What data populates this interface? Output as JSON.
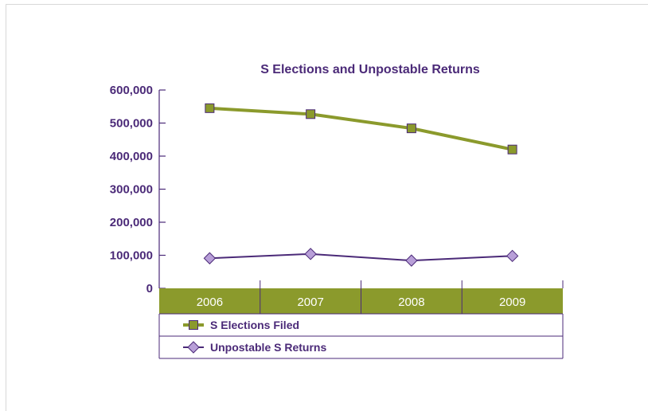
{
  "chart_data": {
    "type": "line",
    "title": "S Elections and Unpostable Returns",
    "categories": [
      "2006",
      "2007",
      "2008",
      "2009"
    ],
    "ylim": [
      0,
      600000
    ],
    "yticks": [
      0,
      100000,
      200000,
      300000,
      400000,
      500000,
      600000
    ],
    "ytick_labels": [
      "0",
      "100,000",
      "200,000",
      "300,000",
      "400,000",
      "500,000",
      "600,000"
    ],
    "series": [
      {
        "name": "S Elections Filed",
        "values": [
          545000,
          527000,
          484000,
          420000
        ],
        "color": "#8b9a2c",
        "marker": "square"
      },
      {
        "name": "Unpostable S Returns",
        "values": [
          91000,
          104000,
          84000,
          98000
        ],
        "color": "#4b2a78",
        "marker_fill": "#b89fd8",
        "marker": "diamond"
      }
    ],
    "category_band_color": "#8b9a2c",
    "legend": "bottom-table"
  }
}
